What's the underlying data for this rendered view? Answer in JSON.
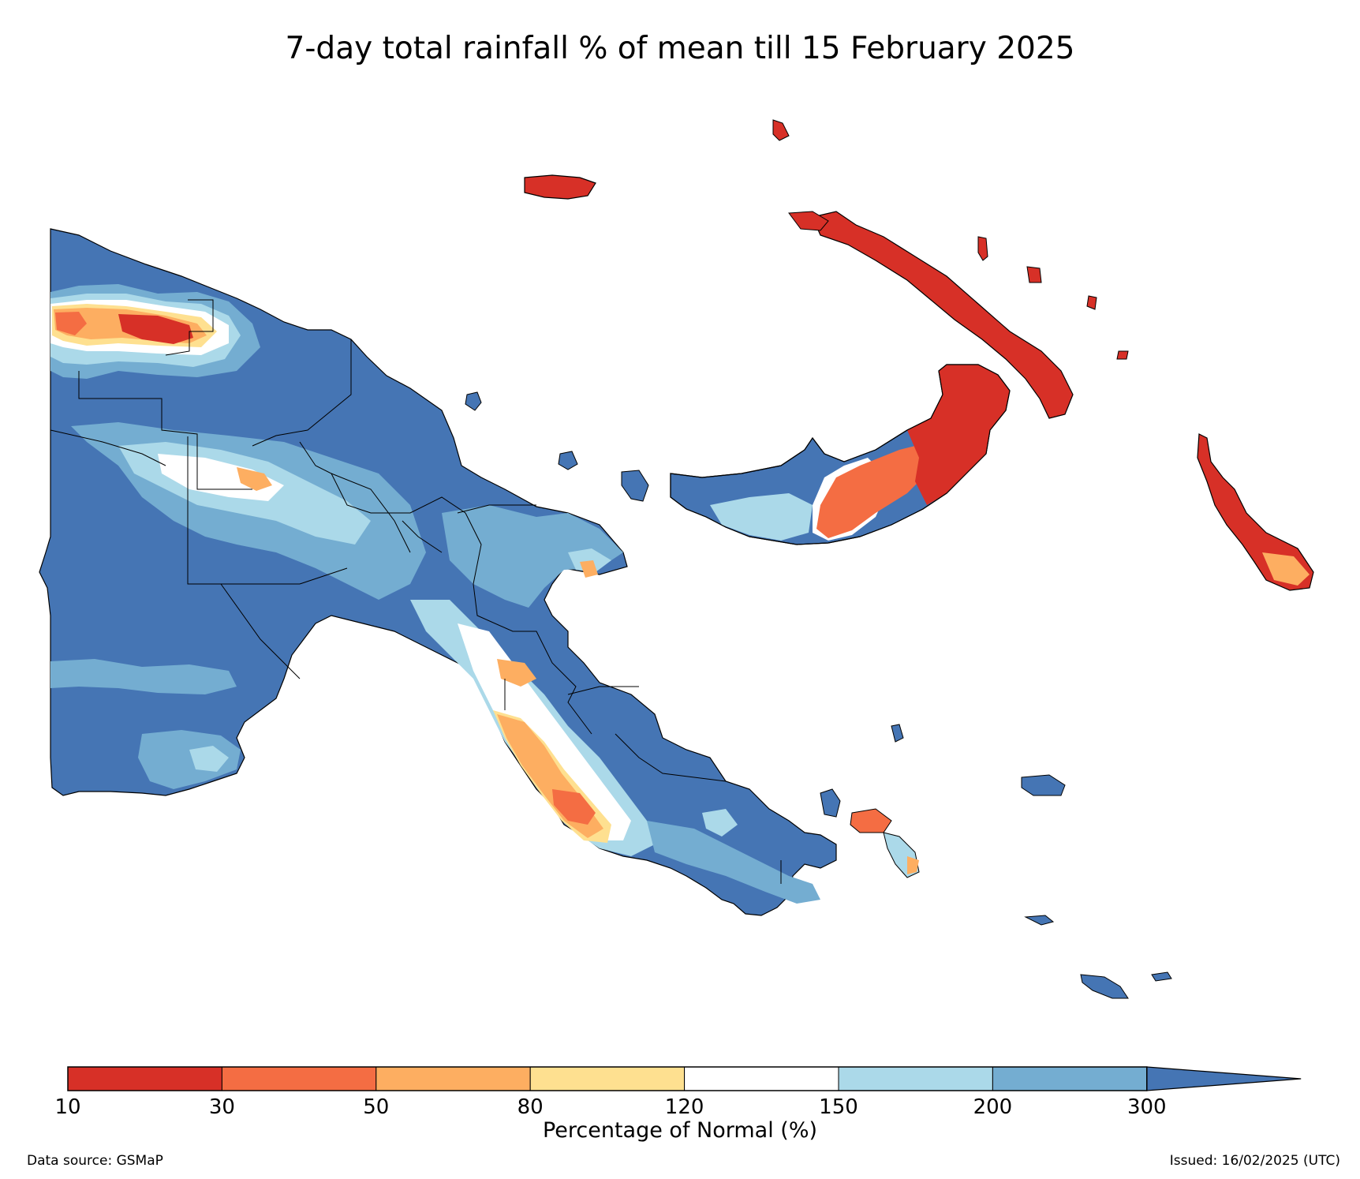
{
  "title": "7-day total rainfall % of mean till 15 February 2025",
  "colorbar": {
    "label": "Percentage of Normal (%)",
    "ticks": [
      "10",
      "30",
      "50",
      "80",
      "120",
      "150",
      "200",
      "300"
    ],
    "bins": [
      {
        "range": "10-30",
        "color": "#d73027"
      },
      {
        "range": "30-50",
        "color": "#f46d43"
      },
      {
        "range": "50-80",
        "color": "#fdae61"
      },
      {
        "range": "80-120",
        "color": "#fee090"
      },
      {
        "range": "120-150",
        "color": "#ffffff"
      },
      {
        "range": "150-200",
        "color": "#abd9e9"
      },
      {
        "range": "200-300",
        "color": "#74add1"
      },
      {
        "range": ">300",
        "color": "#4575b4"
      }
    ]
  },
  "footer": {
    "source": "Data source: GSMaP",
    "issued": "Issued: 16/02/2025 (UTC)"
  }
}
